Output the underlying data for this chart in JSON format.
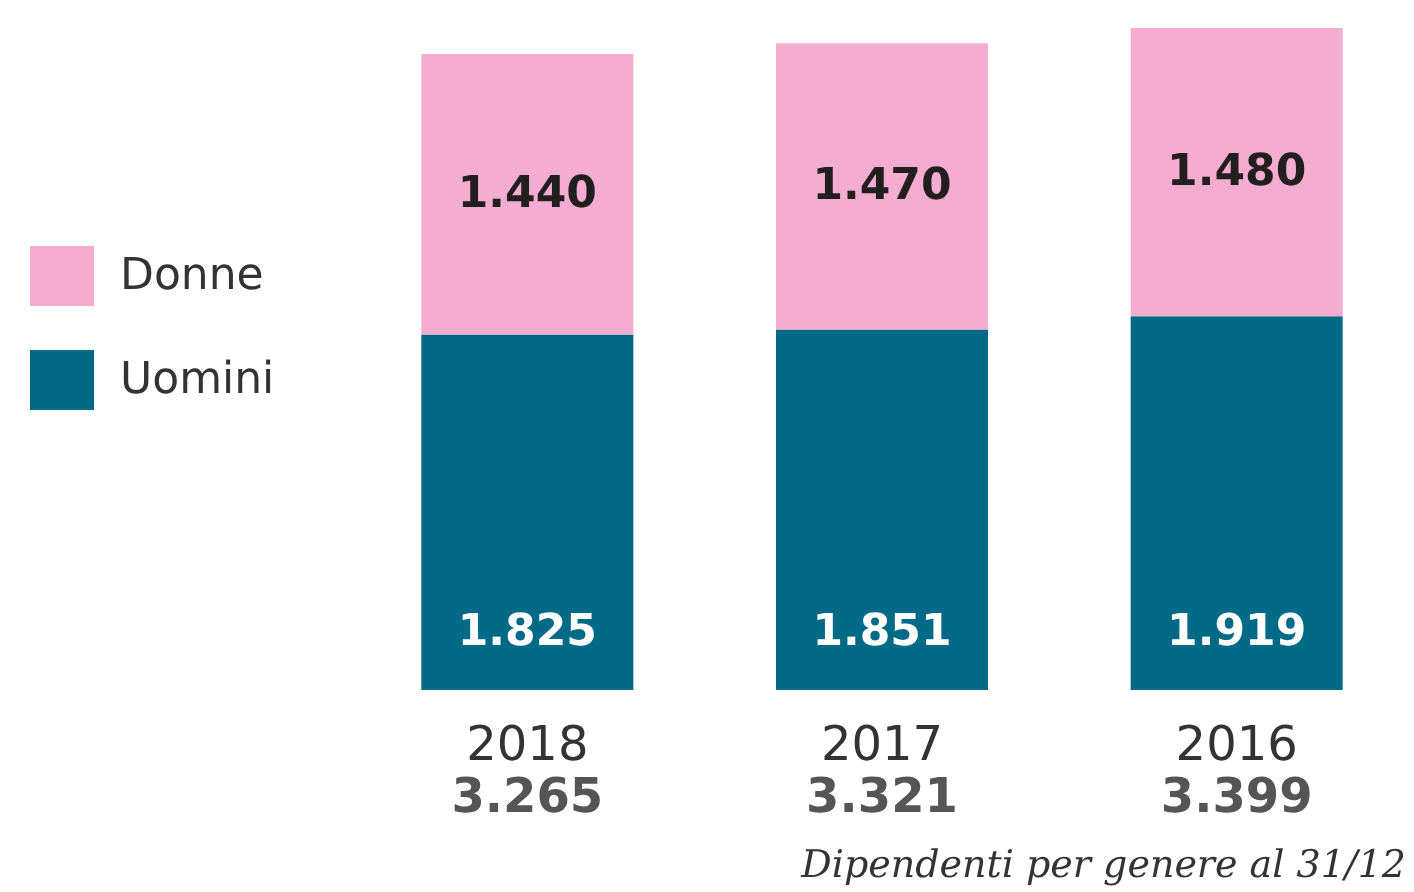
{
  "chart_data": {
    "type": "bar",
    "stacked": true,
    "categories": [
      "2018",
      "2017",
      "2016"
    ],
    "series": [
      {
        "name": "Uomini",
        "color": "#006a87",
        "values": [
          1825,
          1851,
          1919
        ],
        "value_labels": [
          "1.825",
          "1.851",
          "1.919"
        ]
      },
      {
        "name": "Donne",
        "color": "#f4acd0",
        "values": [
          1440,
          1470,
          1480
        ],
        "value_labels": [
          "1.440",
          "1.470",
          "1.480"
        ]
      }
    ],
    "totals": [
      "3.265",
      "3.321",
      "3.399"
    ],
    "legend": "left",
    "tick_labels": "x",
    "annotations": [
      "Dipendenti per genere al 31/12"
    ]
  }
}
